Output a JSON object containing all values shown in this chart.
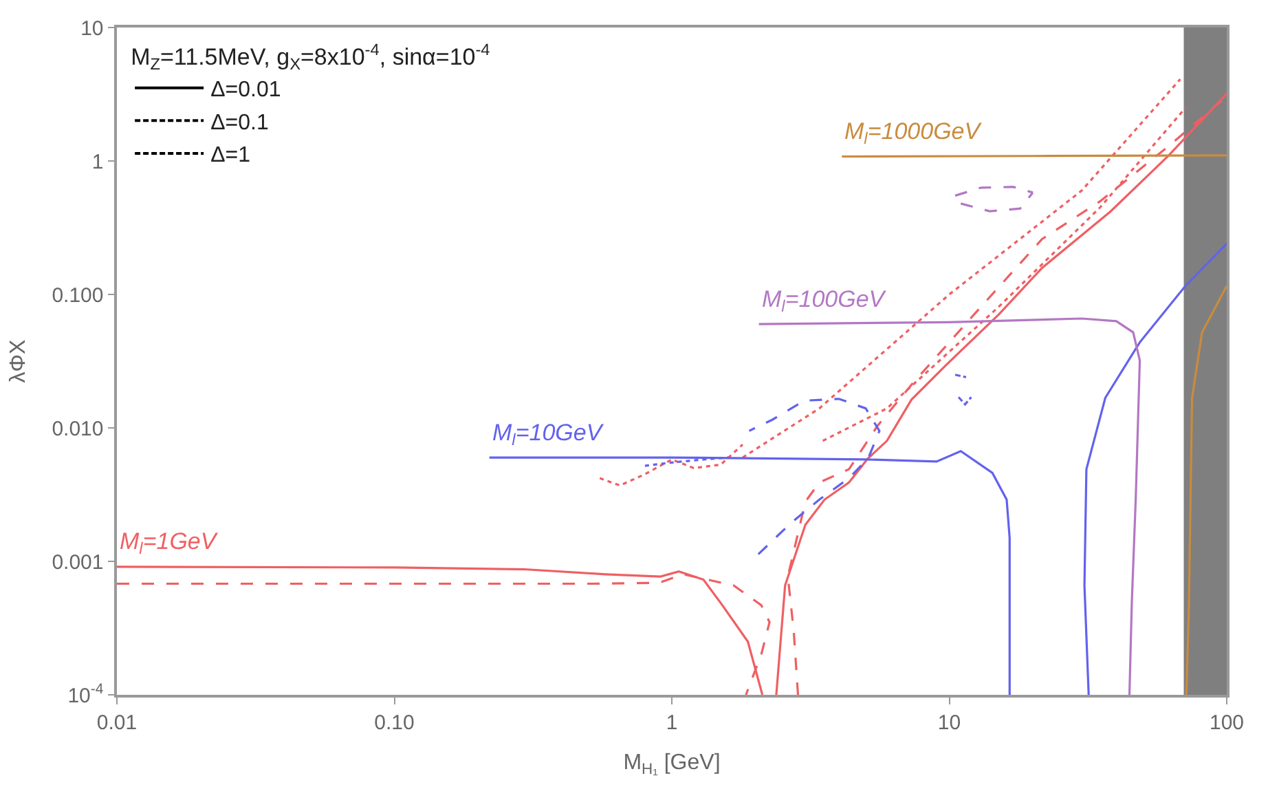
{
  "chart_data": {
    "type": "line",
    "xlabel": "M$_{H₁}$ [GeV]",
    "ylabel": "λΦX",
    "legend_title": "M$_{Z}$=11.5MeV, g$_{X}$=8x10$^{-4}$, sinα=10$^{-4}$",
    "log": "xy",
    "grid": false,
    "legend": "top left",
    "xlim": [
      0.01,
      100
    ],
    "ylim": [
      0.0001,
      10
    ],
    "xticks": [
      {
        "value": 0.01,
        "label": "0.01"
      },
      {
        "value": 0.1,
        "label": "0.10"
      },
      1,
      10,
      100
    ],
    "yticks": [
      {
        "value": 0.0001,
        "label": "10$^{-4}$"
      },
      {
        "value": 0.001,
        "label": "0.001"
      },
      {
        "value": 0.01,
        "label": "0.010"
      },
      {
        "value": 0.1,
        "label": "0.100"
      },
      1,
      10
    ],
    "bands": [
      {
        "axis": "x",
        "from": 70,
        "to": 100,
        "color": "#7f7f7f"
      }
    ],
    "series": [
      {
        "name": "Δ=0.01",
        "color": "#000000",
        "line_style": "solid",
        "x": [
          null
        ],
        "values": [
          null
        ]
      },
      {
        "name": "Δ=0.1",
        "color": "#000000",
        "line_style": "dashed",
        "x": [
          null
        ],
        "values": [
          null
        ]
      },
      {
        "name": "Δ=1",
        "color": "#000000",
        "line_style": "dotted",
        "x": [
          null
        ],
        "values": [
          null
        ]
      },
      {
        "name": "M$_{l}$=1GeV",
        "color": "#ef5f63",
        "line_style": "solid",
        "x": [
          0.01,
          0.1,
          0.3,
          0.58,
          0.91,
          1.06,
          1.3,
          1.52,
          1.88,
          2.12
        ],
        "values": [
          0.00091,
          0.0009,
          0.00087,
          0.0008,
          0.00077,
          0.00084,
          0.00073,
          0.00047,
          0.00025,
          0.0001
        ]
      },
      {
        "color": "#ef5f63",
        "line_style": "solid",
        "x": [
          2.38,
          2.56,
          3.03,
          3.55,
          4.35,
          5.09,
          5.96,
          7.31,
          9.64,
          15.1,
          21.6,
          38.1,
          61.8,
          100
        ],
        "values": [
          0.0001,
          0.00066,
          0.00188,
          0.0029,
          0.0039,
          0.0059,
          0.008,
          0.0163,
          0.029,
          0.071,
          0.158,
          0.418,
          1.1,
          3.2
        ]
      },
      {
        "color": "#ef5f63",
        "line_style": "dashed",
        "x": [
          0.01,
          0.5,
          0.9,
          1.1,
          1.67,
          2.1,
          2.25,
          2.1,
          1.85
        ],
        "values": [
          0.00068,
          0.00068,
          0.00069,
          0.0008,
          0.00066,
          0.00047,
          0.00035,
          0.0002,
          0.0001
        ]
      },
      {
        "color": "#ef5f63",
        "line_style": "dashed",
        "x": [
          2.85,
          2.75,
          2.62,
          3.03,
          3.4,
          4.35,
          5.5,
          7.3,
          12.3,
          21.6,
          35,
          62,
          100
        ],
        "values": [
          0.0001,
          0.0003,
          0.00077,
          0.0028,
          0.0039,
          0.0049,
          0.0103,
          0.021,
          0.071,
          0.26,
          0.5,
          1.3,
          3.05
        ]
      },
      {
        "color": "#ef5f63",
        "line_style": "dotted",
        "x": [
          1.8,
          3.4,
          10,
          30,
          68
        ],
        "values": [
          0.006,
          0.014,
          0.1,
          0.6,
          4.1
        ]
      },
      {
        "color": "#ef5f63",
        "line_style": "dotted",
        "x": [
          3.5,
          5.96,
          15,
          35,
          71
        ],
        "values": [
          0.008,
          0.014,
          0.08,
          0.45,
          2.5
        ]
      },
      {
        "color": "#ef5f63",
        "line_style": "dotted",
        "x": [
          0.55,
          0.65,
          0.8,
          1.0,
          1.2,
          1.5,
          1.8
        ],
        "values": [
          0.0042,
          0.0037,
          0.0045,
          0.0058,
          0.005,
          0.0053,
          0.0075
        ]
      },
      {
        "name": "M$_{l}$=10GeV",
        "color": "#6262ee",
        "line_style": "solid",
        "x": [
          0.22,
          1,
          5,
          9.0,
          11.0,
          14.3,
          16.1,
          16.5,
          16.5
        ],
        "values": [
          0.006,
          0.006,
          0.0058,
          0.0056,
          0.0067,
          0.0046,
          0.0029,
          0.0015,
          0.0001
        ]
      },
      {
        "color": "#6262ee",
        "line_style": "solid",
        "x": [
          31.8,
          30.7,
          31.2,
          36.5,
          48.6,
          71,
          100
        ],
        "values": [
          0.0001,
          0.00066,
          0.0049,
          0.0168,
          0.0438,
          0.116,
          0.24
        ]
      },
      {
        "color": "#6262ee",
        "line_style": "dashed",
        "x": [
          2.05,
          2.66,
          3.4,
          4.35,
          5.1,
          5.6,
          5.0,
          4.0,
          3.0,
          2.3,
          1.9
        ],
        "values": [
          0.00113,
          0.0019,
          0.0029,
          0.0042,
          0.0059,
          0.0095,
          0.014,
          0.0165,
          0.016,
          0.0115,
          0.0095
        ]
      },
      {
        "color": "#6262ee",
        "line_style": "dashed",
        "x": [
          10.5,
          11.5
        ],
        "values": [
          0.025,
          0.024
        ]
      },
      {
        "color": "#6262ee",
        "line_style": "dashed",
        "x": [
          10.8,
          11.4,
          12.0
        ],
        "values": [
          0.017,
          0.015,
          0.017
        ]
      },
      {
        "color": "#6262ee",
        "line_style": "dotted",
        "x": [
          0.8,
          1.0,
          1.3,
          1.6
        ],
        "values": [
          0.0052,
          0.0055,
          0.0058,
          0.006
        ]
      },
      {
        "name": "M$_{l}$=100GeV",
        "color": "#b377c4",
        "line_style": "solid",
        "x": [
          2.06,
          10,
          30,
          40,
          46,
          48.6,
          47,
          45.5,
          44.6
        ],
        "values": [
          0.06,
          0.062,
          0.066,
          0.063,
          0.052,
          0.032,
          0.003,
          0.0005,
          0.0001
        ]
      },
      {
        "color": "#b377c4",
        "line_style": "dashed",
        "x": [
          10.5,
          13,
          17,
          20
        ],
        "values": [
          0.55,
          0.63,
          0.64,
          0.58
        ]
      },
      {
        "color": "#b377c4",
        "line_style": "dashed",
        "x": [
          11,
          14,
          18,
          20
        ],
        "values": [
          0.48,
          0.42,
          0.44,
          0.58
        ]
      },
      {
        "name": "M$_{l}$=1000GeV",
        "color": "#c98b3f",
        "line_style": "solid",
        "x": [
          4.1,
          20,
          100
        ],
        "values": [
          1.08,
          1.09,
          1.1
        ]
      },
      {
        "color": "#c98b3f",
        "line_style": "solid",
        "x": [
          71.5,
          73,
          75,
          81.5,
          100
        ],
        "values": [
          0.0001,
          0.00043,
          0.0168,
          0.052,
          0.116
        ]
      }
    ]
  }
}
